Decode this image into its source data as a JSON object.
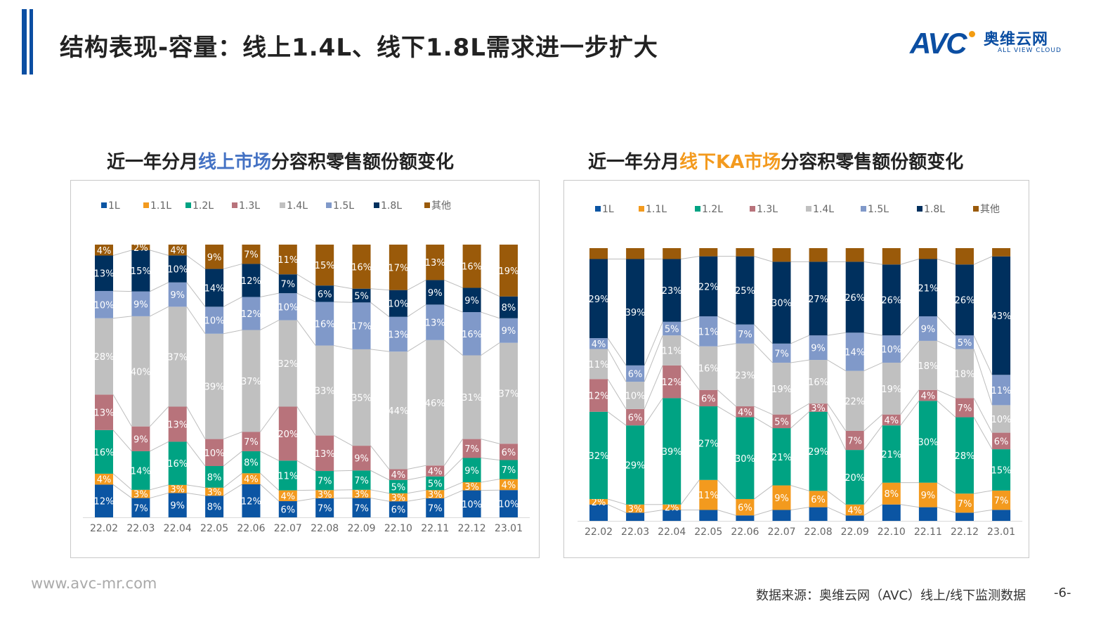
{
  "header": {
    "title": "结构表现-容量：线上1.4L、线下1.8L需求进一步扩大",
    "accent_color": "#0b4ea2"
  },
  "logo": {
    "mark": "AVC",
    "cn": "奥维云网",
    "en": "ALL VIEW CLOUD"
  },
  "chart_data": [
    {
      "type": "bar",
      "stacked_percent": true,
      "title_parts": [
        "近一年分月",
        "线上市场",
        "分容积零售额份额变化"
      ],
      "title_highlight_color": "#4472c4",
      "legend_position": "top",
      "grid": false,
      "categories": [
        "22.02",
        "22.03",
        "22.04",
        "22.05",
        "22.06",
        "22.07",
        "22.08",
        "22.09",
        "22.10",
        "22.11",
        "22.12",
        "23.01"
      ],
      "series": [
        {
          "name": "1L",
          "color": "#0b55a3",
          "values": [
            12,
            7,
            9,
            8,
            12,
            6,
            7,
            7,
            6,
            7,
            10,
            10
          ]
        },
        {
          "name": "1.1L",
          "color": "#f39a1e",
          "values": [
            4,
            3,
            3,
            3,
            4,
            4,
            3,
            3,
            3,
            3,
            3,
            4
          ]
        },
        {
          "name": "1.2L",
          "color": "#00a383",
          "values": [
            16,
            14,
            16,
            8,
            8,
            11,
            7,
            7,
            5,
            5,
            9,
            7
          ]
        },
        {
          "name": "1.3L",
          "color": "#b8737b",
          "values": [
            13,
            9,
            13,
            10,
            7,
            20,
            13,
            9,
            4,
            4,
            7,
            6
          ]
        },
        {
          "name": "1.4L",
          "color": "#c0c0c0",
          "values": [
            28,
            40,
            37,
            39,
            37,
            32,
            33,
            35,
            44,
            46,
            31,
            37
          ]
        },
        {
          "name": "1.5L",
          "color": "#8099c9",
          "values": [
            10,
            9,
            9,
            10,
            12,
            10,
            16,
            17,
            13,
            13,
            16,
            9
          ]
        },
        {
          "name": "1.8L",
          "color": "#00305e",
          "values": [
            13,
            15,
            10,
            14,
            12,
            7,
            6,
            5,
            10,
            9,
            9,
            8
          ]
        },
        {
          "name": "其他",
          "color": "#9a5a0a",
          "values": [
            4,
            2,
            4,
            9,
            7,
            11,
            15,
            16,
            17,
            13,
            16,
            19
          ]
        }
      ],
      "unit": "%"
    },
    {
      "type": "bar",
      "stacked_percent": true,
      "title_parts": [
        "近一年分月",
        "线下KA市场",
        "分容积零售额份额变化"
      ],
      "title_highlight_color": "#f39a1e",
      "legend_position": "top",
      "grid": false,
      "categories": [
        "22.02",
        "22.03",
        "22.04",
        "22.05",
        "22.06",
        "22.07",
        "22.08",
        "22.09",
        "22.10",
        "22.11",
        "22.12",
        "23.01"
      ],
      "series": [
        {
          "name": "1L",
          "color": "#0b55a3",
          "show_labels": false,
          "values": [
            6,
            3,
            4,
            4,
            2,
            4,
            5,
            2,
            6,
            5,
            3,
            4
          ]
        },
        {
          "name": "1.1L",
          "color": "#f39a1e",
          "values": [
            2,
            3,
            2,
            11,
            6,
            9,
            6,
            4,
            8,
            9,
            7,
            7
          ]
        },
        {
          "name": "1.2L",
          "color": "#00a383",
          "values": [
            32,
            29,
            39,
            27,
            30,
            21,
            29,
            20,
            21,
            30,
            28,
            15
          ]
        },
        {
          "name": "1.3L",
          "color": "#b8737b",
          "values": [
            12,
            6,
            12,
            6,
            4,
            5,
            3,
            7,
            4,
            4,
            7,
            6
          ]
        },
        {
          "name": "1.4L",
          "color": "#c0c0c0",
          "values": [
            11,
            10,
            11,
            16,
            23,
            19,
            16,
            22,
            19,
            18,
            18,
            10
          ]
        },
        {
          "name": "1.5L",
          "color": "#8099c9",
          "values": [
            4,
            6,
            5,
            11,
            7,
            7,
            9,
            14,
            10,
            9,
            5,
            11
          ]
        },
        {
          "name": "1.8L",
          "color": "#00305e",
          "values": [
            29,
            39,
            23,
            22,
            25,
            30,
            27,
            26,
            26,
            21,
            26,
            43
          ]
        },
        {
          "name": "其他",
          "color": "#9a5a0a",
          "show_labels": false,
          "values": [
            4,
            4,
            4,
            3,
            3,
            5,
            5,
            5,
            6,
            4,
            6,
            3
          ]
        }
      ],
      "unit": "%"
    }
  ],
  "footer": {
    "website": "www.avc-mr.com",
    "source": "数据来源：奥维云网（AVC）线上/线下监测数据",
    "page": "-6-"
  }
}
